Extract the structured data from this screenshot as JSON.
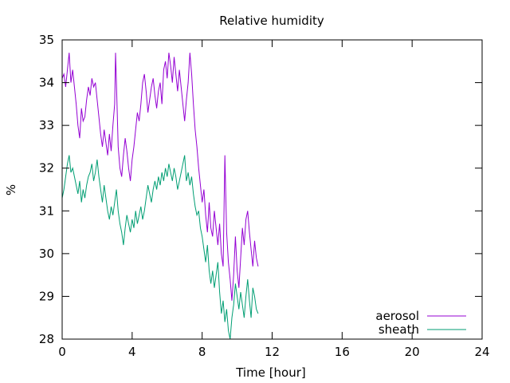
{
  "chart_data": {
    "type": "line",
    "title": "Relative humidity",
    "xlabel": "Time [hour]",
    "ylabel": "%",
    "xlim": [
      0,
      24
    ],
    "ylim": [
      28,
      35
    ],
    "xticks": [
      0,
      4,
      8,
      12,
      16,
      20,
      24
    ],
    "yticks": [
      28,
      29,
      30,
      31,
      32,
      33,
      34,
      35
    ],
    "grid": false,
    "legend_position": "bottom-right",
    "series": [
      {
        "name": "aerosol",
        "color": "#9400d3",
        "points": [
          [
            0.0,
            34.1
          ],
          [
            0.1,
            34.2
          ],
          [
            0.2,
            33.9
          ],
          [
            0.3,
            34.3
          ],
          [
            0.4,
            34.7
          ],
          [
            0.5,
            34.0
          ],
          [
            0.6,
            34.3
          ],
          [
            0.7,
            33.9
          ],
          [
            0.8,
            33.5
          ],
          [
            0.9,
            33.0
          ],
          [
            1.0,
            32.7
          ],
          [
            1.1,
            33.4
          ],
          [
            1.2,
            33.1
          ],
          [
            1.3,
            33.2
          ],
          [
            1.4,
            33.6
          ],
          [
            1.5,
            33.9
          ],
          [
            1.6,
            33.7
          ],
          [
            1.7,
            34.1
          ],
          [
            1.8,
            33.9
          ],
          [
            1.9,
            34.0
          ],
          [
            2.0,
            33.6
          ],
          [
            2.1,
            33.2
          ],
          [
            2.2,
            32.8
          ],
          [
            2.3,
            32.5
          ],
          [
            2.4,
            32.9
          ],
          [
            2.5,
            32.6
          ],
          [
            2.6,
            32.3
          ],
          [
            2.7,
            32.8
          ],
          [
            2.8,
            32.4
          ],
          [
            2.9,
            33.0
          ],
          [
            3.0,
            33.5
          ],
          [
            3.05,
            34.7
          ],
          [
            3.1,
            34.0
          ],
          [
            3.2,
            32.5
          ],
          [
            3.3,
            32.0
          ],
          [
            3.4,
            31.8
          ],
          [
            3.5,
            32.3
          ],
          [
            3.6,
            32.7
          ],
          [
            3.7,
            32.4
          ],
          [
            3.8,
            32.0
          ],
          [
            3.9,
            31.7
          ],
          [
            4.0,
            32.2
          ],
          [
            4.1,
            32.5
          ],
          [
            4.2,
            32.9
          ],
          [
            4.3,
            33.3
          ],
          [
            4.4,
            33.1
          ],
          [
            4.5,
            33.5
          ],
          [
            4.6,
            34.0
          ],
          [
            4.7,
            34.2
          ],
          [
            4.8,
            33.8
          ],
          [
            4.9,
            33.3
          ],
          [
            5.0,
            33.6
          ],
          [
            5.1,
            33.9
          ],
          [
            5.2,
            34.1
          ],
          [
            5.3,
            33.7
          ],
          [
            5.4,
            33.4
          ],
          [
            5.5,
            33.8
          ],
          [
            5.6,
            34.0
          ],
          [
            5.7,
            33.5
          ],
          [
            5.8,
            34.3
          ],
          [
            5.9,
            34.5
          ],
          [
            6.0,
            34.1
          ],
          [
            6.1,
            34.7
          ],
          [
            6.2,
            34.4
          ],
          [
            6.3,
            34.0
          ],
          [
            6.4,
            34.6
          ],
          [
            6.5,
            34.2
          ],
          [
            6.6,
            33.8
          ],
          [
            6.7,
            34.3
          ],
          [
            6.8,
            33.9
          ],
          [
            6.9,
            33.5
          ],
          [
            7.0,
            33.1
          ],
          [
            7.1,
            33.6
          ],
          [
            7.2,
            34.0
          ],
          [
            7.3,
            34.7
          ],
          [
            7.4,
            34.2
          ],
          [
            7.5,
            33.5
          ],
          [
            7.6,
            32.9
          ],
          [
            7.7,
            32.5
          ],
          [
            7.8,
            32.0
          ],
          [
            7.9,
            31.6
          ],
          [
            8.0,
            31.2
          ],
          [
            8.1,
            31.5
          ],
          [
            8.2,
            30.9
          ],
          [
            8.3,
            30.5
          ],
          [
            8.4,
            31.2
          ],
          [
            8.5,
            30.6
          ],
          [
            8.6,
            30.4
          ],
          [
            8.7,
            31.0
          ],
          [
            8.8,
            30.6
          ],
          [
            8.9,
            30.2
          ],
          [
            9.0,
            30.7
          ],
          [
            9.1,
            30.0
          ],
          [
            9.2,
            29.7
          ],
          [
            9.3,
            32.3
          ],
          [
            9.4,
            30.5
          ],
          [
            9.5,
            29.8
          ],
          [
            9.6,
            29.4
          ],
          [
            9.7,
            28.9
          ],
          [
            9.8,
            29.5
          ],
          [
            9.9,
            30.4
          ],
          [
            10.0,
            29.6
          ],
          [
            10.1,
            29.2
          ],
          [
            10.2,
            29.9
          ],
          [
            10.3,
            30.6
          ],
          [
            10.4,
            30.2
          ],
          [
            10.5,
            30.8
          ],
          [
            10.6,
            31.0
          ],
          [
            10.7,
            30.5
          ],
          [
            10.8,
            30.1
          ],
          [
            10.9,
            29.7
          ],
          [
            11.0,
            30.3
          ],
          [
            11.1,
            29.9
          ],
          [
            11.2,
            29.7
          ]
        ]
      },
      {
        "name": "sheath",
        "color": "#009e73",
        "points": [
          [
            0.0,
            31.3
          ],
          [
            0.1,
            31.5
          ],
          [
            0.2,
            31.8
          ],
          [
            0.3,
            32.1
          ],
          [
            0.4,
            32.3
          ],
          [
            0.5,
            31.9
          ],
          [
            0.6,
            32.0
          ],
          [
            0.7,
            31.8
          ],
          [
            0.8,
            31.6
          ],
          [
            0.9,
            31.4
          ],
          [
            1.0,
            31.7
          ],
          [
            1.1,
            31.2
          ],
          [
            1.2,
            31.5
          ],
          [
            1.3,
            31.3
          ],
          [
            1.4,
            31.6
          ],
          [
            1.5,
            31.8
          ],
          [
            1.6,
            31.9
          ],
          [
            1.7,
            32.1
          ],
          [
            1.8,
            31.7
          ],
          [
            1.9,
            31.9
          ],
          [
            2.0,
            32.2
          ],
          [
            2.1,
            31.8
          ],
          [
            2.2,
            31.5
          ],
          [
            2.3,
            31.2
          ],
          [
            2.4,
            31.6
          ],
          [
            2.5,
            31.3
          ],
          [
            2.6,
            31.0
          ],
          [
            2.7,
            30.8
          ],
          [
            2.8,
            31.1
          ],
          [
            2.9,
            30.9
          ],
          [
            3.0,
            31.2
          ],
          [
            3.1,
            31.5
          ],
          [
            3.2,
            31.0
          ],
          [
            3.3,
            30.7
          ],
          [
            3.4,
            30.5
          ],
          [
            3.5,
            30.2
          ],
          [
            3.6,
            30.6
          ],
          [
            3.7,
            30.9
          ],
          [
            3.8,
            30.7
          ],
          [
            3.9,
            30.5
          ],
          [
            4.0,
            30.8
          ],
          [
            4.1,
            30.6
          ],
          [
            4.2,
            31.0
          ],
          [
            4.3,
            30.7
          ],
          [
            4.4,
            30.9
          ],
          [
            4.5,
            31.1
          ],
          [
            4.6,
            30.8
          ],
          [
            4.7,
            31.0
          ],
          [
            4.8,
            31.3
          ],
          [
            4.9,
            31.6
          ],
          [
            5.0,
            31.4
          ],
          [
            5.1,
            31.2
          ],
          [
            5.2,
            31.5
          ],
          [
            5.3,
            31.7
          ],
          [
            5.4,
            31.5
          ],
          [
            5.5,
            31.8
          ],
          [
            5.6,
            31.6
          ],
          [
            5.7,
            31.9
          ],
          [
            5.8,
            31.7
          ],
          [
            5.9,
            32.0
          ],
          [
            6.0,
            31.8
          ],
          [
            6.1,
            32.1
          ],
          [
            6.2,
            31.9
          ],
          [
            6.3,
            31.7
          ],
          [
            6.4,
            32.0
          ],
          [
            6.5,
            31.8
          ],
          [
            6.6,
            31.5
          ],
          [
            6.7,
            31.7
          ],
          [
            6.8,
            31.9
          ],
          [
            6.9,
            32.1
          ],
          [
            7.0,
            32.3
          ],
          [
            7.1,
            31.7
          ],
          [
            7.2,
            31.9
          ],
          [
            7.3,
            31.6
          ],
          [
            7.4,
            31.8
          ],
          [
            7.5,
            31.4
          ],
          [
            7.6,
            31.1
          ],
          [
            7.7,
            30.9
          ],
          [
            7.8,
            31.0
          ],
          [
            7.9,
            30.6
          ],
          [
            8.0,
            30.4
          ],
          [
            8.1,
            30.1
          ],
          [
            8.2,
            29.8
          ],
          [
            8.3,
            30.2
          ],
          [
            8.4,
            29.6
          ],
          [
            8.5,
            29.3
          ],
          [
            8.6,
            29.6
          ],
          [
            8.7,
            29.2
          ],
          [
            8.8,
            29.5
          ],
          [
            8.9,
            29.8
          ],
          [
            9.0,
            29.1
          ],
          [
            9.1,
            28.6
          ],
          [
            9.2,
            28.9
          ],
          [
            9.3,
            28.4
          ],
          [
            9.4,
            28.7
          ],
          [
            9.5,
            28.2
          ],
          [
            9.6,
            28.0
          ],
          [
            9.7,
            28.5
          ],
          [
            9.8,
            28.8
          ],
          [
            9.9,
            29.3
          ],
          [
            10.0,
            29.0
          ],
          [
            10.1,
            28.7
          ],
          [
            10.2,
            29.1
          ],
          [
            10.3,
            28.8
          ],
          [
            10.4,
            28.5
          ],
          [
            10.5,
            29.0
          ],
          [
            10.6,
            29.4
          ],
          [
            10.7,
            28.9
          ],
          [
            10.8,
            28.5
          ],
          [
            10.9,
            29.2
          ],
          [
            11.0,
            29.0
          ],
          [
            11.1,
            28.7
          ],
          [
            11.2,
            28.6
          ]
        ]
      }
    ]
  }
}
